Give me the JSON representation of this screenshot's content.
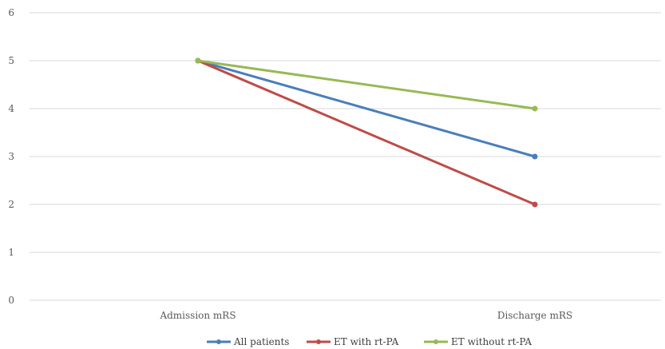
{
  "chart_data": {
    "type": "line",
    "categories": [
      "Admission mRS",
      "Discharge mRS"
    ],
    "ylim": [
      0,
      6
    ],
    "yticks": [
      "0",
      "1",
      "2",
      "3",
      "4",
      "5",
      "6"
    ],
    "grid": true,
    "legend_placement": "bottom",
    "series": [
      {
        "name": "All patients",
        "values": [
          5,
          3
        ],
        "color": "#4a7ebb"
      },
      {
        "name": "ET with rt-PA",
        "values": [
          5,
          2
        ],
        "color": "#be4b48"
      },
      {
        "name": "ET without rt-PA",
        "values": [
          5,
          4
        ],
        "color": "#98b954"
      }
    ]
  }
}
